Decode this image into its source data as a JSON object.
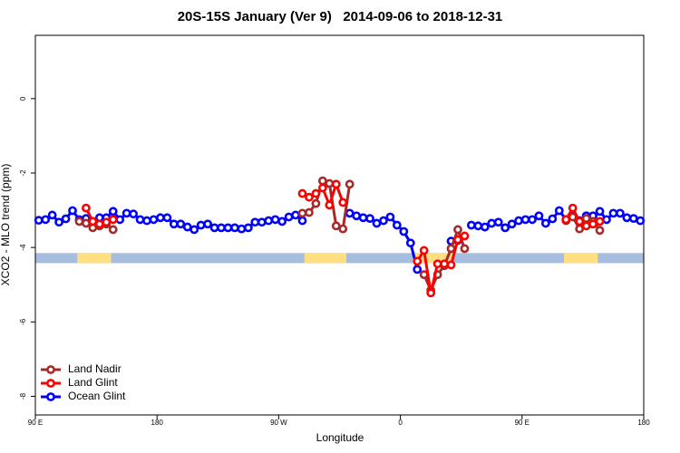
{
  "chart_data": {
    "type": "line",
    "title": "20S-15S January (Ver 9)   2014-09-06 to 2018-12-31",
    "x_label": "Longitude",
    "y_label": "XCO2 - MLO trend (ppm)",
    "xlim": [
      90,
      540
    ],
    "xticks": [
      {
        "value": 90,
        "label": "90 E"
      },
      180,
      {
        "value": 270,
        "label": "90 W"
      },
      {
        "value": 360,
        "label": "0"
      },
      {
        "value": 450,
        "label": "90 E"
      },
      {
        "value": 540,
        "label": "180"
      }
    ],
    "ylim": [
      -8.5,
      1.7
    ],
    "yticks": [
      0,
      -2,
      -4,
      -6,
      -8
    ],
    "legend": "bottomleft",
    "surface_strip": {
      "ylim": [
        -4.42,
        -4.15
      ],
      "ocean_color": "#a6bddf",
      "land_color": "#ffdf80",
      "land_ranges": [
        [
          121,
          146
        ],
        [
          289,
          320
        ],
        [
          369,
          399
        ],
        [
          481,
          506
        ]
      ]
    },
    "x": [
      92.5,
      97.5,
      102.5,
      107.5,
      112.5,
      117.5,
      122.5,
      127.5,
      132.5,
      137.5,
      142.5,
      147.5,
      152.5,
      157.5,
      162.5,
      167.5,
      172.5,
      177.5,
      182.5,
      187.5,
      192.5,
      197.5,
      202.5,
      207.5,
      212.5,
      217.5,
      222.5,
      227.5,
      232.5,
      237.5,
      242.5,
      247.5,
      252.5,
      257.5,
      262.5,
      267.5,
      272.5,
      277.5,
      282.5,
      287.5,
      292.5,
      297.5,
      302.5,
      307.5,
      312.5,
      317.5,
      322.5,
      327.5,
      332.5,
      337.5,
      342.5,
      347.5,
      352.5,
      357.5,
      362.5,
      367.5,
      372.5,
      377.5,
      382.5,
      387.5,
      392.5,
      397.5,
      402.5,
      407.5,
      412.5,
      417.5,
      422.5,
      427.5,
      432.5,
      437.5,
      442.5,
      447.5,
      452.5,
      457.5,
      462.5,
      467.5,
      472.5,
      477.5,
      482.5,
      487.5,
      492.5,
      497.5,
      502.5,
      507.5,
      512.5,
      517.5,
      522.5,
      527.5,
      532.5,
      537.5
    ],
    "series": [
      {
        "name": "Land Nadir",
        "color": "#a52a2a",
        "values": [
          null,
          null,
          null,
          null,
          null,
          null,
          -3.3,
          -3.35,
          -3.47,
          -3.42,
          -3.37,
          -3.52,
          null,
          null,
          null,
          null,
          null,
          null,
          null,
          null,
          null,
          null,
          null,
          null,
          null,
          null,
          null,
          null,
          null,
          null,
          null,
          null,
          null,
          null,
          null,
          null,
          null,
          null,
          null,
          -3.08,
          -3.06,
          -2.82,
          -2.21,
          -2.28,
          -3.42,
          -3.5,
          -2.3,
          null,
          null,
          null,
          null,
          null,
          null,
          null,
          null,
          null,
          null,
          -4.73,
          -5.15,
          -4.73,
          -4.49,
          -4.03,
          -3.52,
          -4.03,
          null,
          null,
          null,
          null,
          null,
          null,
          null,
          null,
          null,
          null,
          null,
          null,
          null,
          null,
          -3.28,
          -3.18,
          -3.5,
          -3.22,
          -3.3,
          -3.54,
          null,
          null,
          null,
          null,
          null,
          null
        ]
      },
      {
        "name": "Land Glint",
        "color": "#ff0000",
        "values": [
          null,
          null,
          null,
          null,
          null,
          null,
          null,
          -2.94,
          -3.3,
          -3.37,
          -3.32,
          -3.25,
          null,
          null,
          null,
          null,
          null,
          null,
          null,
          null,
          null,
          null,
          null,
          null,
          null,
          null,
          null,
          null,
          null,
          null,
          null,
          null,
          null,
          null,
          null,
          null,
          null,
          null,
          null,
          -2.55,
          -2.65,
          -2.55,
          -2.4,
          -2.86,
          -2.3,
          -2.79,
          null,
          null,
          null,
          null,
          null,
          null,
          null,
          null,
          null,
          null,
          -4.37,
          -4.08,
          -5.22,
          -4.44,
          -4.44,
          -4.47,
          -3.79,
          -3.69,
          null,
          null,
          null,
          null,
          null,
          null,
          null,
          null,
          null,
          null,
          null,
          null,
          null,
          null,
          -3.25,
          -2.94,
          -3.3,
          -3.42,
          -3.37,
          -3.3,
          null,
          null,
          null,
          null,
          null,
          null
        ]
      },
      {
        "name": "Ocean Glint",
        "color": "#0000ff",
        "values": [
          -3.27,
          -3.25,
          -3.13,
          -3.32,
          -3.23,
          -3.01,
          -3.25,
          -3.22,
          -3.3,
          -3.2,
          -3.2,
          -3.03,
          -3.25,
          -3.08,
          -3.1,
          -3.25,
          -3.28,
          -3.25,
          -3.2,
          -3.2,
          -3.37,
          -3.37,
          -3.45,
          -3.52,
          -3.4,
          -3.37,
          -3.47,
          -3.47,
          -3.47,
          -3.47,
          -3.5,
          -3.47,
          -3.32,
          -3.32,
          -3.28,
          -3.25,
          -3.3,
          -3.18,
          -3.13,
          -3.28,
          null,
          null,
          null,
          null,
          null,
          null,
          -3.08,
          -3.15,
          -3.2,
          -3.22,
          -3.35,
          -3.28,
          -3.18,
          -3.4,
          -3.57,
          -3.88,
          -4.59,
          null,
          null,
          null,
          null,
          -3.83,
          -3.81,
          null,
          -3.4,
          -3.42,
          -3.45,
          -3.35,
          -3.32,
          -3.47,
          -3.37,
          -3.28,
          -3.25,
          -3.25,
          -3.15,
          -3.35,
          -3.23,
          -3.01,
          -3.25,
          -3.15,
          -3.28,
          -3.15,
          -3.15,
          -3.03,
          -3.25,
          -3.08,
          -3.08,
          -3.2,
          -3.22,
          -3.28
        ]
      }
    ]
  }
}
